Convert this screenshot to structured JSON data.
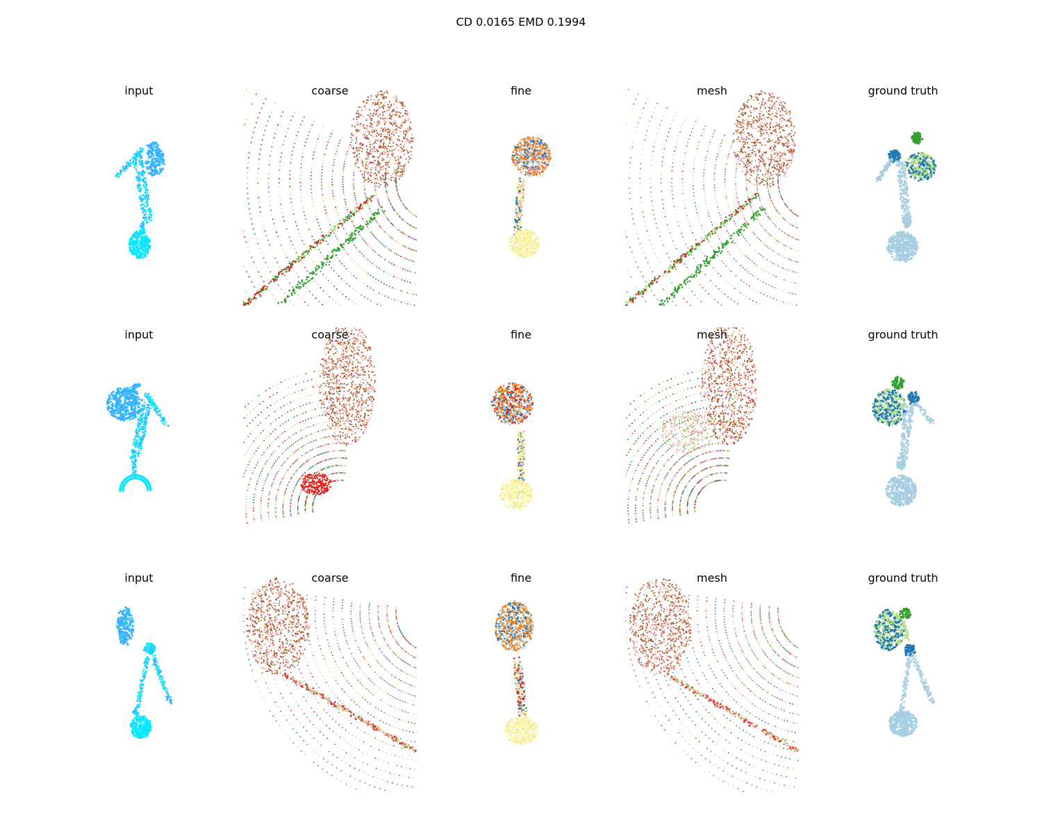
{
  "figure": {
    "suptitle": "CD 0.0165  EMD 0.1994",
    "rows": [
      {
        "panels": [
          {
            "title": "input",
            "kind": "input"
          },
          {
            "title": "coarse",
            "kind": "coarse"
          },
          {
            "title": "fine",
            "kind": "fine"
          },
          {
            "title": "mesh",
            "kind": "mesh"
          },
          {
            "title": "ground truth",
            "kind": "gt"
          }
        ]
      },
      {
        "panels": [
          {
            "title": "input",
            "kind": "input"
          },
          {
            "title": "coarse",
            "kind": "coarse"
          },
          {
            "title": "fine",
            "kind": "fine"
          },
          {
            "title": "mesh",
            "kind": "mesh"
          },
          {
            "title": "ground truth",
            "kind": "gt"
          }
        ]
      },
      {
        "panels": [
          {
            "title": "input",
            "kind": "input"
          },
          {
            "title": "coarse",
            "kind": "coarse"
          },
          {
            "title": "fine",
            "kind": "fine"
          },
          {
            "title": "mesh",
            "kind": "mesh"
          },
          {
            "title": "ground truth",
            "kind": "gt"
          }
        ]
      }
    ]
  },
  "palette": {
    "input": [
      "#1fe3ff",
      "#3fa8ff",
      "#00f0ff"
    ],
    "parts": [
      "#b05a28",
      "#f4938a",
      "#e41a1c",
      "#2ca02c",
      "#1f77b4",
      "#ff7f0e",
      "#fff59a",
      "#b2df8a",
      "#a6cee3",
      "#fbb4c4",
      "#9467bd",
      "#e6c39a"
    ],
    "gt": [
      "#a6cee3",
      "#1f78b4",
      "#b2df8a",
      "#33a02c"
    ]
  }
}
